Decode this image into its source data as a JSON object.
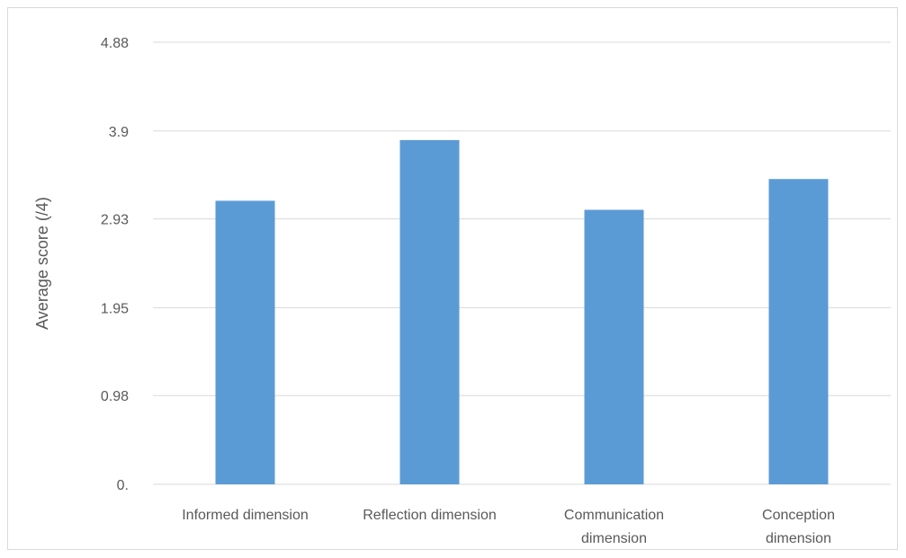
{
  "chart_data": {
    "type": "bar",
    "title": "",
    "xlabel": "",
    "ylabel": "Average score (/4)",
    "categories": [
      [
        "Informed dimension"
      ],
      [
        "Reflection dimension"
      ],
      [
        "Communication",
        "dimension"
      ],
      [
        "Conception",
        "dimension"
      ]
    ],
    "values": [
      3.13,
      3.8,
      3.03,
      3.37
    ],
    "y_ticks": [
      0,
      0.98,
      1.95,
      2.93,
      3.9,
      4.88
    ],
    "y_tick_labels": [
      "0.",
      "0.98",
      "1.95",
      "2.93",
      "3.9",
      "4.88"
    ],
    "ylim": [
      0,
      4.88
    ],
    "grid": true,
    "legend": "none",
    "bar_color": "#5b9bd5"
  }
}
